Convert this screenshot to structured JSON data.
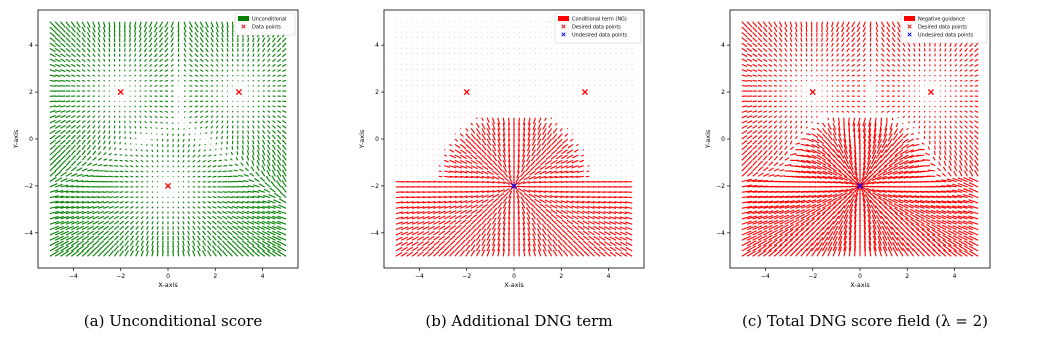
{
  "figure": {
    "captions": [
      "(a) Unconditional score",
      "(b) Additional DNG term",
      "(c) Total DNG score field (λ = 2)"
    ]
  },
  "chart_data": [
    {
      "type": "quiver",
      "xlabel": "X-axis",
      "ylabel": "Y-axis",
      "xlim": [
        -5.5,
        5.5
      ],
      "ylim": [
        -5.5,
        5.5
      ],
      "xticks": [
        -4,
        -2,
        0,
        2,
        4
      ],
      "yticks": [
        -4,
        -2,
        0,
        2,
        4
      ],
      "grid": false,
      "legend_position": "top-right",
      "legend": [
        {
          "label": "Unconditional",
          "marker": "patch",
          "color": "#008000"
        },
        {
          "label": "Data points",
          "marker": "x",
          "color": "#ff0000"
        }
      ],
      "field": {
        "name": "Unconditional",
        "color": "#008000",
        "kind": "unconditional"
      },
      "points": [
        {
          "name": "Data points",
          "color": "#ff0000",
          "coords": [
            [
              -2,
              2
            ],
            [
              3,
              2
            ],
            [
              0,
              -2
            ]
          ]
        }
      ]
    },
    {
      "type": "quiver",
      "xlabel": "X-axis",
      "ylabel": "Y-axis",
      "xlim": [
        -5.5,
        5.5
      ],
      "ylim": [
        -5.5,
        5.5
      ],
      "xticks": [
        -4,
        -2,
        0,
        2,
        4
      ],
      "yticks": [
        -4,
        -2,
        0,
        2,
        4
      ],
      "grid": false,
      "legend_position": "top-right",
      "legend": [
        {
          "label": "Conditional term (NG)",
          "marker": "patch",
          "color": "#ff0000"
        },
        {
          "label": "Desired data points",
          "marker": "x",
          "color": "#ff0000"
        },
        {
          "label": "Undesired data points",
          "marker": "x",
          "color": "#0000ff"
        }
      ],
      "field": {
        "name": "Conditional term (NG)",
        "color": "#ff0000",
        "kind": "dng_term"
      },
      "points": [
        {
          "name": "Desired data points",
          "color": "#ff0000",
          "coords": [
            [
              -2,
              2
            ],
            [
              3,
              2
            ]
          ]
        },
        {
          "name": "Undesired data points",
          "color": "#0000ff",
          "coords": [
            [
              0,
              -2
            ]
          ]
        }
      ]
    },
    {
      "type": "quiver",
      "xlabel": "X-axis",
      "ylabel": "Y-axis",
      "xlim": [
        -5.5,
        5.5
      ],
      "ylim": [
        -5.5,
        5.5
      ],
      "xticks": [
        -4,
        -2,
        0,
        2,
        4
      ],
      "yticks": [
        -4,
        -2,
        0,
        2,
        4
      ],
      "grid": false,
      "legend_position": "top-right",
      "legend": [
        {
          "label": "Negative guidance",
          "marker": "patch",
          "color": "#ff0000"
        },
        {
          "label": "Desired data points",
          "marker": "x",
          "color": "#ff0000"
        },
        {
          "label": "Undesired data points",
          "marker": "x",
          "color": "#0000ff"
        }
      ],
      "field": {
        "name": "Negative guidance",
        "color": "#ff0000",
        "kind": "total",
        "lambda": 2
      },
      "points": [
        {
          "name": "Desired data points",
          "color": "#ff0000",
          "coords": [
            [
              -2,
              2
            ],
            [
              3,
              2
            ]
          ]
        },
        {
          "name": "Undesired data points",
          "color": "#0000ff",
          "coords": [
            [
              0,
              -2
            ]
          ]
        }
      ]
    }
  ]
}
